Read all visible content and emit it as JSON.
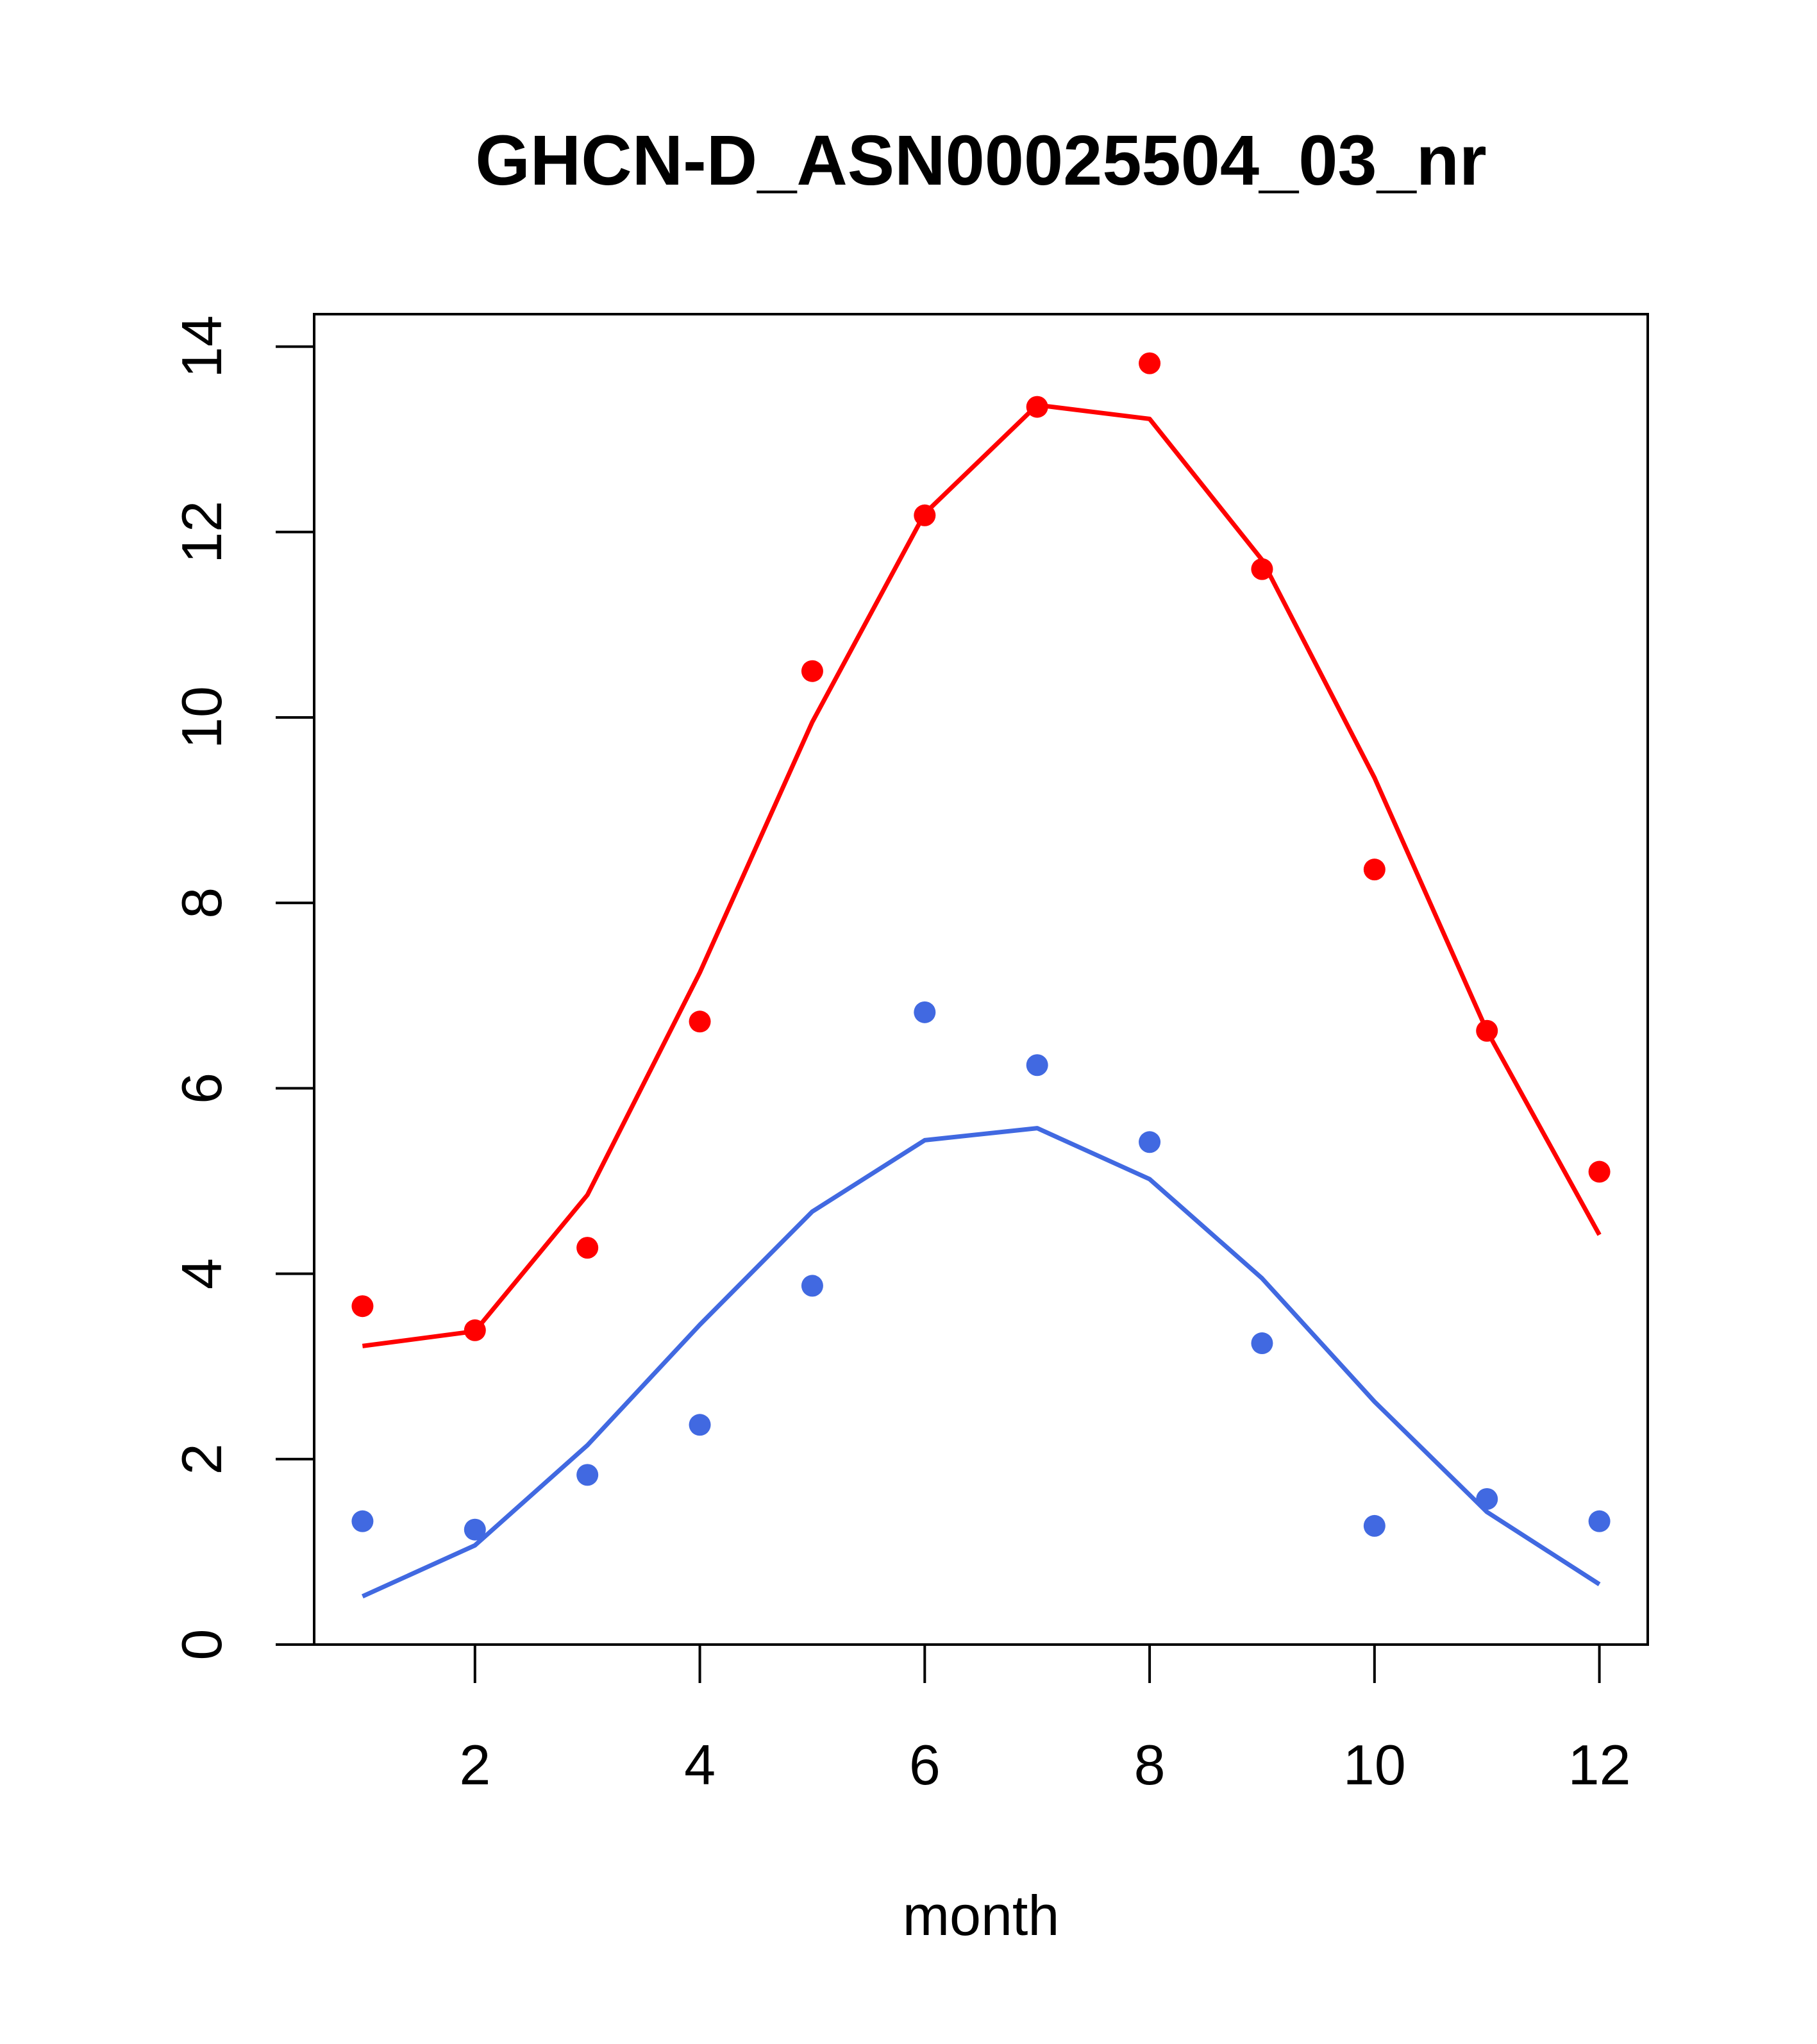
{
  "chart_data": {
    "type": "scatter",
    "title": "GHCN-D_ASN00025504_03_nr",
    "xlabel": "month",
    "ylabel": "",
    "xlim": [
      0.57,
      12.43
    ],
    "ylim": [
      0,
      14.35
    ],
    "x_ticks": [
      2,
      4,
      6,
      8,
      10,
      12
    ],
    "y_ticks": [
      0,
      2,
      4,
      6,
      8,
      10,
      12,
      14
    ],
    "grid": false,
    "legend": "none",
    "x": [
      1,
      2,
      3,
      4,
      5,
      6,
      7,
      8,
      9,
      10,
      11,
      12
    ],
    "series": [
      {
        "color": "#ff0000",
        "points": [
          3.65,
          3.39,
          4.28,
          6.72,
          10.5,
          12.18,
          13.35,
          13.82,
          11.6,
          8.36,
          6.62,
          5.1
        ],
        "line": [
          3.22,
          3.38,
          4.85,
          7.25,
          9.95,
          12.2,
          13.37,
          13.22,
          11.7,
          9.35,
          6.62,
          4.42
        ]
      },
      {
        "color": "#4169e1",
        "points": [
          1.33,
          1.24,
          1.83,
          2.37,
          3.87,
          6.82,
          6.25,
          5.42,
          3.25,
          1.28,
          1.57,
          1.33
        ],
        "line": [
          0.52,
          1.07,
          2.15,
          3.45,
          4.67,
          5.44,
          5.57,
          5.02,
          3.95,
          2.62,
          1.43,
          0.65
        ]
      }
    ]
  }
}
